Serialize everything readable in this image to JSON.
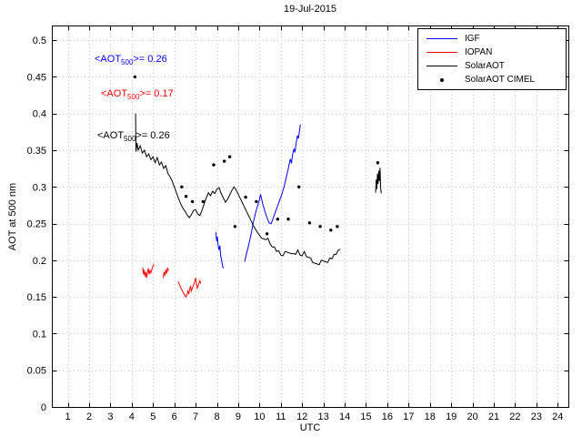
{
  "title": "19-Jul-2015",
  "axes": {
    "xlabel": "UTC",
    "ylabel": "AOT at 500 nm"
  },
  "annotations": [
    {
      "prefix": "<AOT",
      "sub": "500",
      "suffix": ">= 0.26",
      "color": "#0000ff"
    },
    {
      "prefix": "<AOT",
      "sub": "500",
      "suffix": ">= 0.17",
      "color": "#ff0000"
    },
    {
      "prefix": "<AOT",
      "sub": "500",
      "suffix": ">= 0.26",
      "color": "#000000"
    }
  ],
  "legend": {
    "position": "top-right",
    "entries": [
      {
        "label": "IGF",
        "color": "#0000ff",
        "marker": "line"
      },
      {
        "label": "IOPAN",
        "color": "#ff0000",
        "marker": "line"
      },
      {
        "label": "SolarAOT",
        "color": "#000000",
        "marker": "line"
      },
      {
        "label": "SolarAOT CIMEL",
        "color": "#000000",
        "marker": "dot"
      }
    ]
  },
  "chart_data": {
    "type": "line",
    "title": "19-Jul-2015",
    "xlabel": "UTC",
    "ylabel": "AOT at 500 nm",
    "xlim": [
      0.25,
      24.5
    ],
    "ylim": [
      0,
      0.52
    ],
    "xticks": [
      1,
      2,
      3,
      4,
      5,
      6,
      7,
      8,
      9,
      10,
      11,
      12,
      13,
      14,
      15,
      16,
      17,
      18,
      19,
      20,
      21,
      22,
      23,
      24
    ],
    "yticks": [
      0,
      0.05,
      0.1,
      0.15,
      0.2,
      0.25,
      0.3,
      0.35,
      0.4,
      0.45,
      0.5
    ],
    "grid": true,
    "legend_position": "top-right",
    "series": [
      {
        "name": "IGF",
        "color": "#0000ff",
        "type": "line",
        "segments": [
          [
            [
              7.95,
              0.238
            ],
            [
              7.99,
              0.226
            ],
            [
              8.02,
              0.232
            ],
            [
              8.06,
              0.22
            ],
            [
              8.1,
              0.214
            ],
            [
              8.14,
              0.22
            ],
            [
              8.18,
              0.206
            ],
            [
              8.22,
              0.2
            ],
            [
              8.26,
              0.193
            ],
            [
              8.3,
              0.189
            ]
          ],
          [
            [
              9.3,
              0.198
            ],
            [
              9.4,
              0.21
            ],
            [
              9.5,
              0.222
            ],
            [
              9.6,
              0.235
            ],
            [
              9.7,
              0.25
            ],
            [
              9.8,
              0.263
            ],
            [
              9.9,
              0.273
            ],
            [
              10.0,
              0.283
            ],
            [
              10.05,
              0.29
            ],
            [
              10.15,
              0.277
            ],
            [
              10.25,
              0.267
            ],
            [
              10.35,
              0.258
            ],
            [
              10.45,
              0.251
            ],
            [
              10.55,
              0.25
            ],
            [
              10.65,
              0.258
            ],
            [
              10.75,
              0.266
            ],
            [
              10.85,
              0.274
            ],
            [
              10.95,
              0.282
            ],
            [
              11.05,
              0.29
            ],
            [
              11.15,
              0.3
            ],
            [
              11.25,
              0.312
            ],
            [
              11.35,
              0.325
            ],
            [
              11.45,
              0.338
            ],
            [
              11.5,
              0.332
            ],
            [
              11.55,
              0.344
            ],
            [
              11.62,
              0.352
            ],
            [
              11.66,
              0.347
            ],
            [
              11.72,
              0.36
            ],
            [
              11.78,
              0.37
            ],
            [
              11.83,
              0.366
            ],
            [
              11.88,
              0.377
            ],
            [
              11.92,
              0.385
            ]
          ]
        ]
      },
      {
        "name": "IOPAN",
        "color": "#ff0000",
        "type": "line",
        "segments": [
          [
            [
              4.52,
              0.19
            ],
            [
              4.55,
              0.181
            ],
            [
              4.58,
              0.187
            ],
            [
              4.62,
              0.178
            ],
            [
              4.66,
              0.184
            ],
            [
              4.7,
              0.176
            ],
            [
              4.74,
              0.183
            ],
            [
              4.78,
              0.189
            ],
            [
              4.82,
              0.181
            ],
            [
              4.86,
              0.186
            ],
            [
              4.9,
              0.183
            ],
            [
              4.95,
              0.188
            ],
            [
              5.0,
              0.192
            ],
            [
              5.05,
              0.195
            ]
          ],
          [
            [
              5.48,
              0.176
            ],
            [
              5.52,
              0.184
            ],
            [
              5.56,
              0.179
            ],
            [
              5.6,
              0.187
            ],
            [
              5.64,
              0.182
            ],
            [
              5.68,
              0.19
            ],
            [
              5.72,
              0.185
            ]
          ],
          [
            [
              6.18,
              0.171
            ],
            [
              6.24,
              0.167
            ],
            [
              6.3,
              0.163
            ],
            [
              6.36,
              0.159
            ],
            [
              6.42,
              0.156
            ],
            [
              6.48,
              0.153
            ],
            [
              6.54,
              0.15
            ],
            [
              6.6,
              0.153
            ],
            [
              6.64,
              0.158
            ],
            [
              6.68,
              0.154
            ],
            [
              6.72,
              0.16
            ],
            [
              6.76,
              0.165
            ],
            [
              6.8,
              0.158
            ],
            [
              6.85,
              0.162
            ],
            [
              6.9,
              0.166
            ],
            [
              6.95,
              0.17
            ],
            [
              7.0,
              0.176
            ],
            [
              7.04,
              0.168
            ],
            [
              7.08,
              0.162
            ],
            [
              7.12,
              0.165
            ],
            [
              7.16,
              0.169
            ],
            [
              7.2,
              0.172
            ],
            [
              7.24,
              0.168
            ]
          ]
        ]
      },
      {
        "name": "SolarAOT",
        "color": "#000000",
        "type": "line",
        "segments": [
          [
            [
              4.18,
              0.4
            ],
            [
              4.2,
              0.348
            ],
            [
              4.25,
              0.36
            ],
            [
              4.3,
              0.35
            ],
            [
              4.4,
              0.356
            ],
            [
              4.5,
              0.346
            ],
            [
              4.6,
              0.35
            ],
            [
              4.7,
              0.341
            ],
            [
              4.8,
              0.345
            ],
            [
              4.9,
              0.337
            ],
            [
              5.0,
              0.341
            ],
            [
              5.1,
              0.333
            ],
            [
              5.2,
              0.34
            ],
            [
              5.3,
              0.33
            ],
            [
              5.4,
              0.334
            ],
            [
              5.5,
              0.325
            ],
            [
              5.6,
              0.329
            ],
            [
              5.7,
              0.318
            ],
            [
              5.8,
              0.314
            ],
            [
              5.9,
              0.308
            ],
            [
              6.0,
              0.3
            ],
            [
              6.1,
              0.292
            ],
            [
              6.2,
              0.284
            ],
            [
              6.3,
              0.277
            ],
            [
              6.4,
              0.271
            ],
            [
              6.5,
              0.267
            ],
            [
              6.6,
              0.262
            ],
            [
              6.7,
              0.258
            ],
            [
              6.8,
              0.262
            ],
            [
              6.9,
              0.268
            ],
            [
              7.0,
              0.269
            ],
            [
              7.1,
              0.263
            ],
            [
              7.2,
              0.261
            ],
            [
              7.3,
              0.268
            ],
            [
              7.4,
              0.277
            ],
            [
              7.5,
              0.285
            ],
            [
              7.6,
              0.292
            ],
            [
              7.7,
              0.288
            ],
            [
              7.8,
              0.294
            ],
            [
              7.9,
              0.291
            ],
            [
              8.0,
              0.297
            ],
            [
              8.1,
              0.299
            ],
            [
              8.2,
              0.291
            ],
            [
              8.3,
              0.285
            ],
            [
              8.4,
              0.279
            ],
            [
              8.5,
              0.283
            ],
            [
              8.6,
              0.289
            ],
            [
              8.7,
              0.295
            ],
            [
              8.8,
              0.3
            ],
            [
              8.9,
              0.296
            ],
            [
              9.0,
              0.29
            ],
            [
              9.1,
              0.284
            ],
            [
              9.2,
              0.278
            ],
            [
              9.3,
              0.272
            ],
            [
              9.4,
              0.266
            ],
            [
              9.5,
              0.26
            ],
            [
              9.6,
              0.254
            ],
            [
              9.7,
              0.248
            ],
            [
              9.8,
              0.243
            ],
            [
              9.9,
              0.238
            ],
            [
              10.0,
              0.234
            ],
            [
              10.1,
              0.23
            ],
            [
              10.2,
              0.229
            ],
            [
              10.3,
              0.228
            ],
            [
              10.4,
              0.23
            ],
            [
              10.5,
              0.222
            ],
            [
              10.6,
              0.218
            ],
            [
              10.7,
              0.218
            ],
            [
              10.8,
              0.212
            ],
            [
              10.9,
              0.213
            ],
            [
              11.0,
              0.207
            ],
            [
              11.1,
              0.206
            ],
            [
              11.2,
              0.212
            ],
            [
              11.3,
              0.211
            ],
            [
              11.4,
              0.21
            ],
            [
              11.5,
              0.209
            ],
            [
              11.6,
              0.209
            ],
            [
              11.7,
              0.208
            ],
            [
              11.8,
              0.214
            ],
            [
              11.9,
              0.207
            ],
            [
              12.0,
              0.206
            ],
            [
              12.1,
              0.212
            ],
            [
              12.2,
              0.205
            ],
            [
              12.3,
              0.204
            ],
            [
              12.4,
              0.203
            ],
            [
              12.5,
              0.197
            ],
            [
              12.6,
              0.196
            ],
            [
              12.7,
              0.195
            ],
            [
              12.8,
              0.194
            ],
            [
              12.9,
              0.2
            ],
            [
              13.0,
              0.199
            ],
            [
              13.1,
              0.198
            ],
            [
              13.2,
              0.197
            ],
            [
              13.3,
              0.203
            ],
            [
              13.4,
              0.202
            ],
            [
              13.5,
              0.208
            ],
            [
              13.6,
              0.208
            ],
            [
              13.7,
              0.214
            ],
            [
              13.8,
              0.215
            ]
          ],
          [
            [
              15.45,
              0.292
            ],
            [
              15.48,
              0.31
            ],
            [
              15.51,
              0.297
            ],
            [
              15.54,
              0.318
            ],
            [
              15.57,
              0.304
            ],
            [
              15.6,
              0.322
            ],
            [
              15.63,
              0.308
            ],
            [
              15.66,
              0.326
            ],
            [
              15.69,
              0.298
            ],
            [
              15.72,
              0.291
            ]
          ]
        ]
      },
      {
        "name": "SolarAOT CIMEL",
        "color": "#000000",
        "type": "scatter",
        "points": [
          [
            4.15,
            0.45
          ],
          [
            6.35,
            0.3
          ],
          [
            6.55,
            0.287
          ],
          [
            6.85,
            0.28
          ],
          [
            7.35,
            0.28
          ],
          [
            7.85,
            0.33
          ],
          [
            8.35,
            0.335
          ],
          [
            8.6,
            0.341
          ],
          [
            8.85,
            0.246
          ],
          [
            9.35,
            0.286
          ],
          [
            9.85,
            0.28
          ],
          [
            10.35,
            0.236
          ],
          [
            10.85,
            0.256
          ],
          [
            11.35,
            0.256
          ],
          [
            11.85,
            0.3
          ],
          [
            12.35,
            0.251
          ],
          [
            12.85,
            0.246
          ],
          [
            13.35,
            0.241
          ],
          [
            13.65,
            0.246
          ],
          [
            15.55,
            0.333
          ]
        ]
      }
    ]
  }
}
